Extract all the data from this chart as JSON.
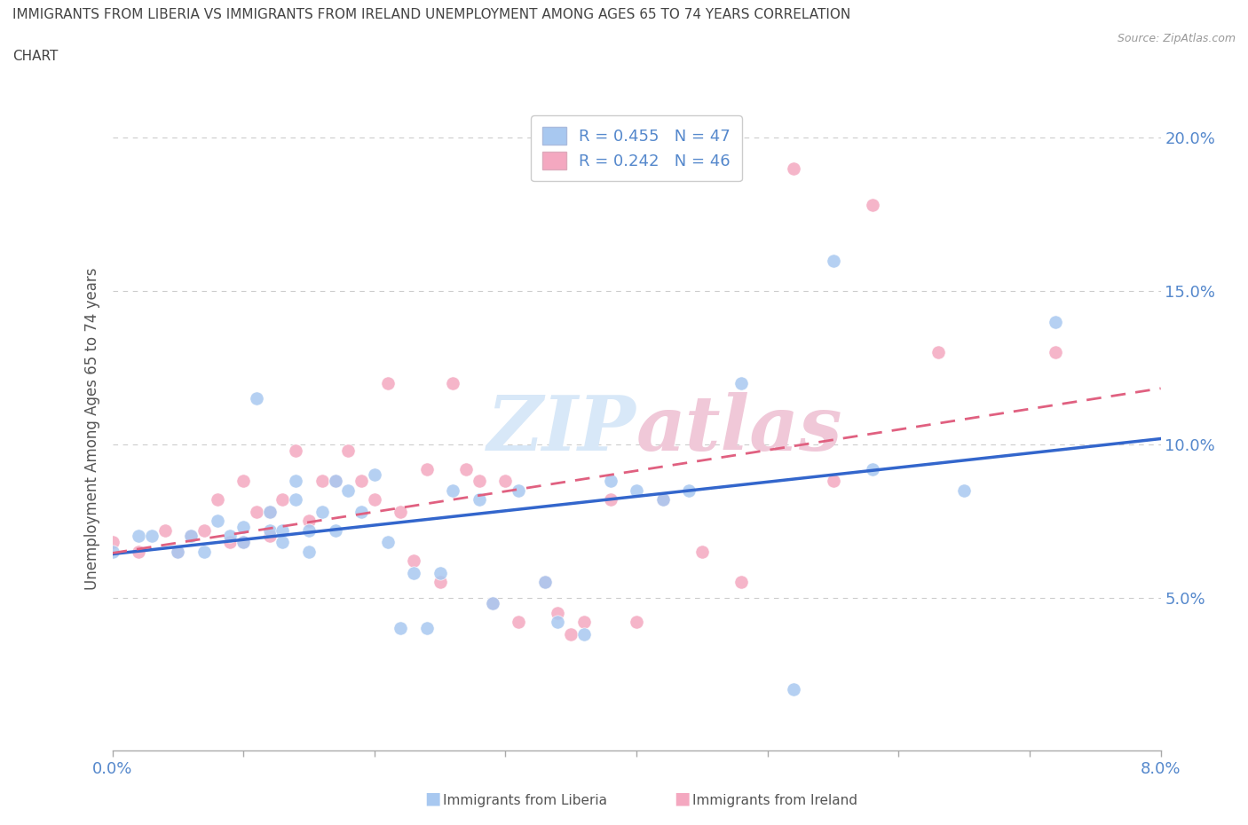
{
  "title_line1": "IMMIGRANTS FROM LIBERIA VS IMMIGRANTS FROM IRELAND UNEMPLOYMENT AMONG AGES 65 TO 74 YEARS CORRELATION",
  "title_line2": "CHART",
  "source_text": "Source: ZipAtlas.com",
  "ylabel": "Unemployment Among Ages 65 to 74 years",
  "xlim": [
    0.0,
    0.08
  ],
  "ylim": [
    0.0,
    0.21
  ],
  "xticks": [
    0.0,
    0.01,
    0.02,
    0.03,
    0.04,
    0.05,
    0.06,
    0.07,
    0.08
  ],
  "yticks": [
    0.0,
    0.05,
    0.1,
    0.15,
    0.2
  ],
  "ytick_labels": [
    "",
    "5.0%",
    "10.0%",
    "15.0%",
    "20.0%"
  ],
  "xtick_labels": [
    "0.0%",
    "",
    "",
    "",
    "",
    "",
    "",
    "",
    "8.0%"
  ],
  "legend_liberia_R": "R = 0.455",
  "legend_liberia_N": "N = 47",
  "legend_ireland_R": "R = 0.242",
  "legend_ireland_N": "N = 46",
  "color_liberia": "#a8c8f0",
  "color_ireland": "#f4a8c0",
  "color_liberia_line": "#3366cc",
  "color_ireland_line": "#e06080",
  "color_tick_labels": "#5588cc",
  "color_title": "#444444",
  "watermark_color": "#d8e8f8",
  "watermark_color2": "#f0c8d8",
  "background_color": "#ffffff",
  "grid_color": "#cccccc",
  "liberia_x": [
    0.0,
    0.002,
    0.003,
    0.005,
    0.006,
    0.007,
    0.008,
    0.009,
    0.01,
    0.01,
    0.011,
    0.012,
    0.012,
    0.013,
    0.013,
    0.014,
    0.014,
    0.015,
    0.015,
    0.016,
    0.017,
    0.017,
    0.018,
    0.019,
    0.02,
    0.021,
    0.022,
    0.023,
    0.024,
    0.025,
    0.026,
    0.028,
    0.029,
    0.031,
    0.033,
    0.034,
    0.036,
    0.038,
    0.04,
    0.042,
    0.044,
    0.048,
    0.052,
    0.055,
    0.058,
    0.065,
    0.072
  ],
  "liberia_y": [
    0.065,
    0.07,
    0.07,
    0.065,
    0.07,
    0.065,
    0.075,
    0.07,
    0.068,
    0.073,
    0.115,
    0.072,
    0.078,
    0.072,
    0.068,
    0.082,
    0.088,
    0.065,
    0.072,
    0.078,
    0.072,
    0.088,
    0.085,
    0.078,
    0.09,
    0.068,
    0.04,
    0.058,
    0.04,
    0.058,
    0.085,
    0.082,
    0.048,
    0.085,
    0.055,
    0.042,
    0.038,
    0.088,
    0.085,
    0.082,
    0.085,
    0.12,
    0.02,
    0.16,
    0.092,
    0.085,
    0.14
  ],
  "ireland_x": [
    0.0,
    0.002,
    0.004,
    0.005,
    0.006,
    0.007,
    0.008,
    0.009,
    0.01,
    0.01,
    0.011,
    0.012,
    0.012,
    0.013,
    0.014,
    0.015,
    0.016,
    0.017,
    0.018,
    0.019,
    0.02,
    0.021,
    0.022,
    0.023,
    0.024,
    0.025,
    0.026,
    0.027,
    0.028,
    0.029,
    0.03,
    0.031,
    0.033,
    0.034,
    0.035,
    0.036,
    0.038,
    0.04,
    0.042,
    0.045,
    0.048,
    0.052,
    0.055,
    0.058,
    0.063,
    0.072
  ],
  "ireland_y": [
    0.068,
    0.065,
    0.072,
    0.065,
    0.07,
    0.072,
    0.082,
    0.068,
    0.068,
    0.088,
    0.078,
    0.07,
    0.078,
    0.082,
    0.098,
    0.075,
    0.088,
    0.088,
    0.098,
    0.088,
    0.082,
    0.12,
    0.078,
    0.062,
    0.092,
    0.055,
    0.12,
    0.092,
    0.088,
    0.048,
    0.088,
    0.042,
    0.055,
    0.045,
    0.038,
    0.042,
    0.082,
    0.042,
    0.082,
    0.065,
    0.055,
    0.19,
    0.088,
    0.178,
    0.13,
    0.13
  ]
}
